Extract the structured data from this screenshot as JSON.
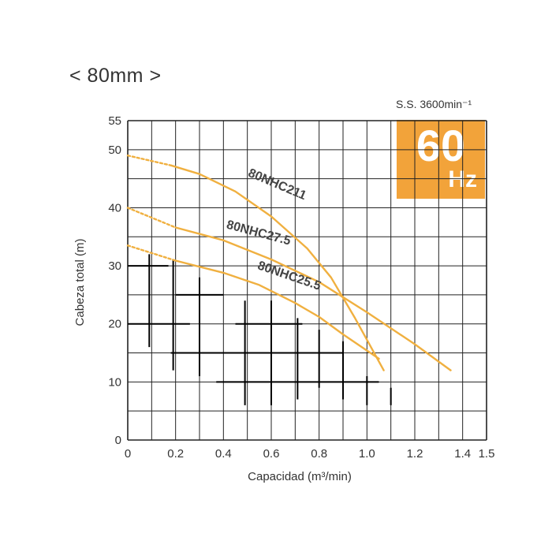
{
  "page": {
    "title": "< 80mm >",
    "speed": "S.S. 3600min⁻¹",
    "frequency_value": "60",
    "frequency_unit": "Hz"
  },
  "colors": {
    "curve": "#F0B040",
    "badge": "#F2A33A",
    "grid": "#222222"
  },
  "chart_data": {
    "type": "line",
    "title": "",
    "xlabel": "Capacidad (m³/min)",
    "ylabel": "Cabeza total (m)",
    "xlim": [
      0,
      1.5
    ],
    "ylim": [
      0,
      55
    ],
    "x_ticks": [
      0,
      0.2,
      0.4,
      0.6,
      0.8,
      1.0,
      1.2,
      1.4,
      1.5
    ],
    "x_tick_labels": [
      "0",
      "0.2",
      "0.4",
      "0.6",
      "0.8",
      "1.0",
      "1.2",
      "1.4",
      "1.5"
    ],
    "y_ticks": [
      0,
      10,
      20,
      30,
      40,
      50,
      55
    ],
    "y_tick_labels": [
      "0",
      "10",
      "20",
      "30",
      "40",
      "50",
      "55"
    ],
    "grid": true,
    "series": [
      {
        "name": "80NHC211",
        "dotted": [
          [
            0,
            49
          ],
          [
            0.18,
            47.3
          ]
        ],
        "values": [
          [
            0.18,
            47.3
          ],
          [
            0.3,
            45.8
          ],
          [
            0.45,
            42.8
          ],
          [
            0.6,
            38.5
          ],
          [
            0.75,
            33
          ],
          [
            0.85,
            28
          ],
          [
            0.95,
            21
          ],
          [
            1.07,
            12
          ]
        ]
      },
      {
        "name": "80NHC27.5",
        "dotted": [
          [
            0,
            40
          ],
          [
            0.2,
            36.6
          ]
        ],
        "values": [
          [
            0.2,
            36.6
          ],
          [
            0.4,
            34.4
          ],
          [
            0.6,
            31.1
          ],
          [
            0.8,
            27.2
          ],
          [
            1.0,
            22
          ],
          [
            1.2,
            16.5
          ],
          [
            1.35,
            12
          ]
        ]
      },
      {
        "name": "80NHC25.5",
        "dotted": [
          [
            0,
            33.5
          ],
          [
            0.2,
            30.9
          ]
        ],
        "values": [
          [
            0.2,
            30.9
          ],
          [
            0.4,
            28.8
          ],
          [
            0.55,
            26.7
          ],
          [
            0.7,
            23.6
          ],
          [
            0.8,
            21.2
          ],
          [
            0.9,
            18.2
          ],
          [
            1.05,
            14
          ]
        ]
      }
    ]
  }
}
